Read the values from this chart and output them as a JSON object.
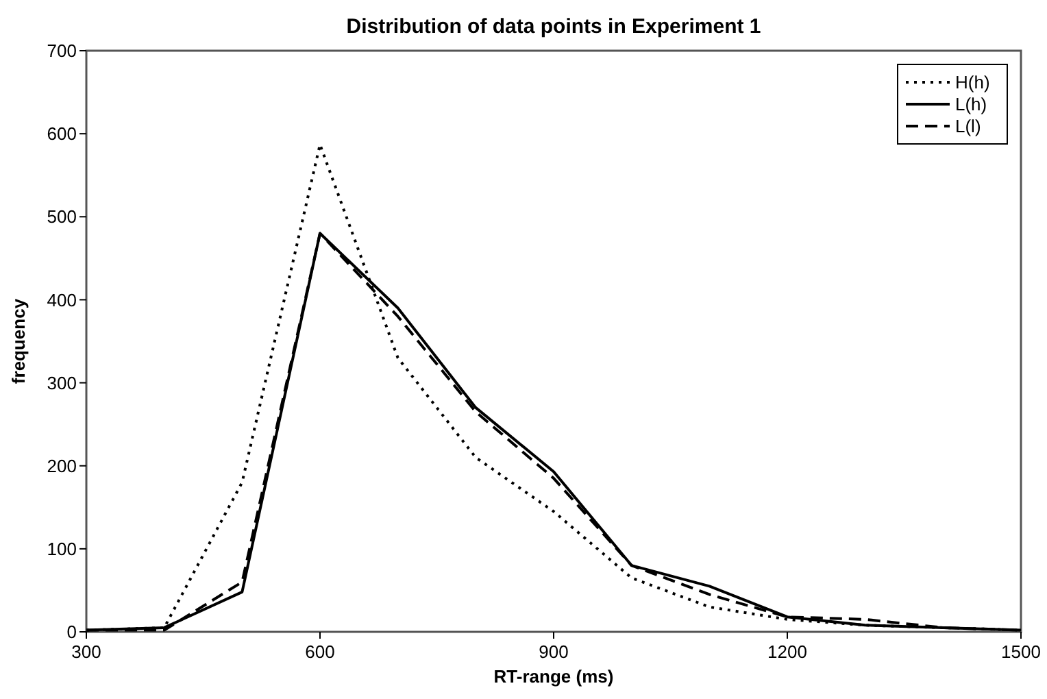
{
  "chart_data": {
    "type": "line",
    "title": "Distribution of data points in Experiment 1",
    "xlabel": "RT-range (ms)",
    "ylabel": "frequency",
    "x": [
      300,
      400,
      500,
      600,
      700,
      800,
      900,
      1000,
      1100,
      1200,
      1300,
      1400,
      1500
    ],
    "series": [
      {
        "name": "H(h)",
        "color": "#000000",
        "line_style": "dotted",
        "values": [
          2,
          5,
          180,
          587,
          330,
          210,
          145,
          65,
          30,
          15,
          8,
          5,
          2
        ]
      },
      {
        "name": "L(h)",
        "color": "#000000",
        "line_style": "solid",
        "values": [
          2,
          5,
          48,
          480,
          390,
          270,
          193,
          80,
          55,
          18,
          8,
          5,
          2
        ]
      },
      {
        "name": "L(l)",
        "color": "#000000",
        "line_style": "dashed",
        "values": [
          2,
          2,
          60,
          480,
          380,
          265,
          185,
          80,
          45,
          18,
          15,
          5,
          2
        ]
      }
    ],
    "xlim": [
      300,
      1500
    ],
    "xticks": [
      300,
      600,
      900,
      1200,
      1500
    ],
    "ylim": [
      0,
      700
    ],
    "yticks": [
      0,
      100,
      200,
      300,
      400,
      500,
      600,
      700
    ],
    "grid": false,
    "legend": "top right",
    "marker": "none"
  }
}
